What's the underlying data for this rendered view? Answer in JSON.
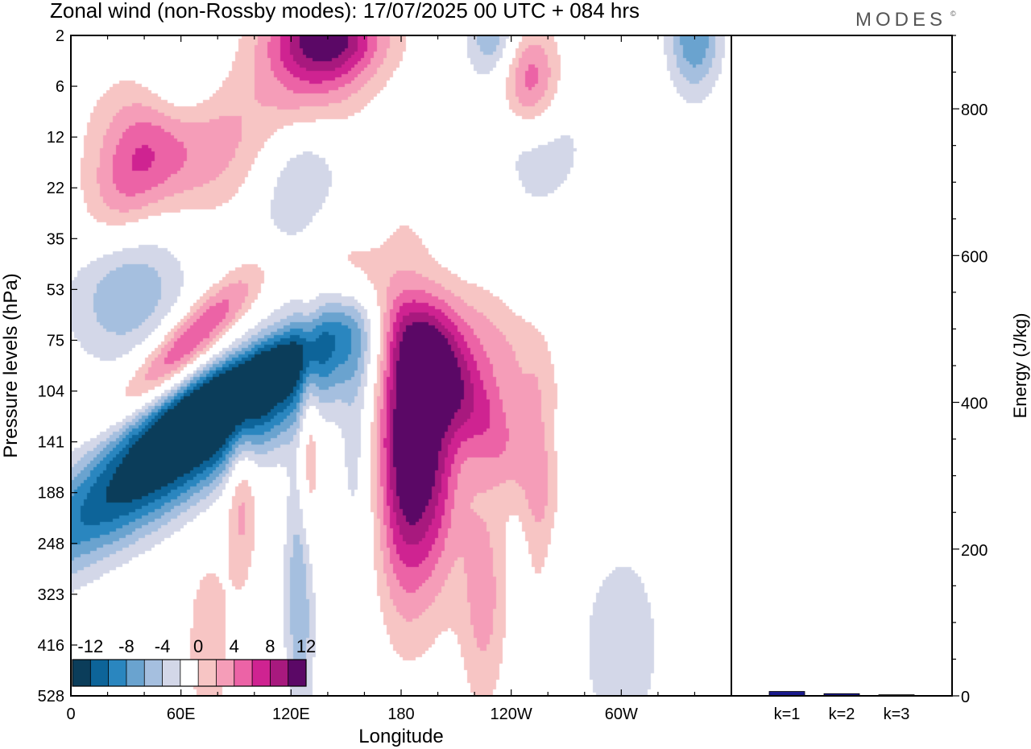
{
  "title": "Zonal wind (non-Rossby modes):  17/07/2025  00 UTC  + 084 hrs",
  "logo": "MODES",
  "logo_mark": "©",
  "colors": {
    "neg": [
      "#0b3d5a",
      "#0d6499",
      "#2a86bf",
      "#6aa3cf",
      "#a5bfdf",
      "#d3d7e8"
    ],
    "pos": [
      "#f7c5c4",
      "#f59db8",
      "#ec63a6",
      "#cf2391",
      "#a8197e",
      "#5b0866"
    ],
    "energy_bar": "#1a1a8c"
  },
  "chart_data": [
    {
      "type": "heatmap",
      "title": "Zonal wind (non-Rossby modes):  17/07/2025  00 UTC  + 084 hrs",
      "xlabel": "Longitude",
      "ylabel": "Pressure levels (hPa)",
      "x_ticks": [
        "0",
        "60E",
        "120E",
        "180",
        "120W",
        "60W"
      ],
      "x_tick_degrees": [
        0,
        60,
        120,
        180,
        240,
        300
      ],
      "x_range_degrees": [
        0,
        360
      ],
      "y_ticks": [
        "2",
        "6",
        "12",
        "22",
        "35",
        "53",
        "75",
        "104",
        "141",
        "188",
        "248",
        "323",
        "416",
        "528"
      ],
      "colorbar": {
        "labels": [
          "-12",
          "-8",
          "-4",
          "0",
          "4",
          "8",
          "12"
        ],
        "levels": [
          -14,
          -12,
          -10,
          -8,
          -6,
          -4,
          -2,
          2,
          4,
          6,
          8,
          10,
          12,
          14
        ]
      },
      "features": [
        {
          "lon": 67,
          "level": 141,
          "value": -15,
          "sx": 18,
          "sy": 3.0,
          "rot": 55
        },
        {
          "lon": 85,
          "level": 104,
          "value": -9,
          "sx": 10,
          "sy": 1.5,
          "rot": 60
        },
        {
          "lon": 65,
          "level": 75,
          "value": 9,
          "sx": 9,
          "sy": 1.3,
          "rot": 45
        },
        {
          "lon": 93,
          "level": 188,
          "value": 5,
          "sx": 6,
          "sy": 1.3,
          "rot": 0
        },
        {
          "lon": 130,
          "level": 141,
          "value": 5,
          "sx": 4,
          "sy": 1.6,
          "rot": 0
        },
        {
          "lon": 125,
          "level": 323,
          "value": -6,
          "sx": 6,
          "sy": 1.8,
          "rot": 0
        },
        {
          "lon": 180,
          "level": 141,
          "value": 10,
          "sx": 10,
          "sy": 2.2,
          "rot": 0
        },
        {
          "lon": 196,
          "level": 141,
          "value": 11,
          "sx": 12,
          "sy": 2.0,
          "rot": 0
        },
        {
          "lon": 213,
          "level": 104,
          "value": 8,
          "sx": 14,
          "sy": 1.6,
          "rot": -35
        },
        {
          "lon": 230,
          "level": 75,
          "value": 4,
          "sx": 16,
          "sy": 1.2,
          "rot": -40
        },
        {
          "lon": 225,
          "level": 323,
          "value": 5,
          "sx": 9,
          "sy": 1.6,
          "rot": 0
        },
        {
          "lon": 255,
          "level": 188,
          "value": 3,
          "sx": 6,
          "sy": 1.8,
          "rot": 0
        },
        {
          "lon": 300,
          "level": 416,
          "value": -3,
          "sx": 20,
          "sy": 1.8,
          "rot": 0
        },
        {
          "lon": 30,
          "level": 53,
          "value": -6,
          "sx": 22,
          "sy": 1.0,
          "rot": 15
        },
        {
          "lon": 125,
          "level": 22,
          "value": -5,
          "sx": 15,
          "sy": 1.0,
          "rot": 10
        },
        {
          "lon": 250,
          "level": 12,
          "value": -5,
          "sx": 20,
          "sy": 0.9,
          "rot": 0
        },
        {
          "lon": 60,
          "level": 12,
          "value": 7,
          "sx": 30,
          "sy": 1.0,
          "rot": 15
        },
        {
          "lon": 130,
          "level": 6,
          "value": 5,
          "sx": 22,
          "sy": 0.8,
          "rot": 12
        },
        {
          "lon": 140,
          "level": 2,
          "value": 12,
          "sx": 22,
          "sy": 0.6,
          "rot": 0
        },
        {
          "lon": 250,
          "level": 6,
          "value": 9,
          "sx": 12,
          "sy": 0.8,
          "rot": 0
        },
        {
          "lon": 225,
          "level": 22,
          "value": 3,
          "sx": 12,
          "sy": 1.0,
          "rot": 0
        },
        {
          "lon": 30,
          "level": 22,
          "value": 5,
          "sx": 15,
          "sy": 1.0,
          "rot": 20
        },
        {
          "lon": 340,
          "level": 2,
          "value": -8,
          "sx": 10,
          "sy": 0.8,
          "rot": 0
        },
        {
          "lon": 60,
          "level": 6,
          "value": -5,
          "sx": 15,
          "sy": 0.8,
          "rot": 0
        },
        {
          "lon": 230,
          "level": 2,
          "value": -6,
          "sx": 10,
          "sy": 0.6,
          "rot": 0
        },
        {
          "lon": 75,
          "level": 416,
          "value": 4,
          "sx": 8,
          "sy": 1.2,
          "rot": 0
        },
        {
          "lon": 160,
          "level": 53,
          "value": 3,
          "sx": 12,
          "sy": 1.1,
          "rot": -30
        },
        {
          "lon": 155,
          "level": 141,
          "value": -3,
          "sx": 6,
          "sy": 1.5,
          "rot": 0
        }
      ]
    },
    {
      "type": "bar",
      "ylabel": "Energy (J/kg)",
      "categories": [
        "k=1",
        "k=2",
        "k=3"
      ],
      "values": [
        6,
        3,
        1.5
      ],
      "ylim": [
        0,
        900
      ],
      "y_ticks": [
        "0",
        "200",
        "400",
        "600",
        "800"
      ],
      "y_tick_values": [
        0,
        200,
        400,
        600,
        800
      ],
      "y_minor_step": 50
    }
  ]
}
